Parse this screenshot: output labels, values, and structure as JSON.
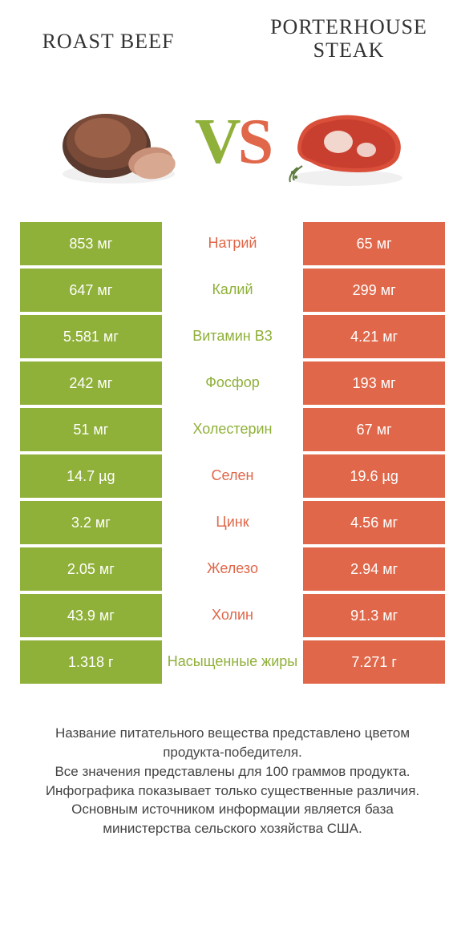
{
  "colors": {
    "green": "#8fb039",
    "red": "#e06749",
    "text": "#333333",
    "bg": "#ffffff"
  },
  "header": {
    "left_title": "Roast Beef",
    "right_title_line1": "Porterhouse",
    "right_title_line2": "Steak",
    "vs_v": "V",
    "vs_s": "S"
  },
  "table": {
    "rows": [
      {
        "left": "853 мг",
        "label": "Натрий",
        "right": "65 мг",
        "winner": "red"
      },
      {
        "left": "647 мг",
        "label": "Калий",
        "right": "299 мг",
        "winner": "green"
      },
      {
        "left": "5.581 мг",
        "label": "Витамин B3",
        "right": "4.21 мг",
        "winner": "green"
      },
      {
        "left": "242 мг",
        "label": "Фосфор",
        "right": "193 мг",
        "winner": "green"
      },
      {
        "left": "51 мг",
        "label": "Холестерин",
        "right": "67 мг",
        "winner": "green"
      },
      {
        "left": "14.7 µg",
        "label": "Селен",
        "right": "19.6 µg",
        "winner": "red"
      },
      {
        "left": "3.2 мг",
        "label": "Цинк",
        "right": "4.56 мг",
        "winner": "red"
      },
      {
        "left": "2.05 мг",
        "label": "Железо",
        "right": "2.94 мг",
        "winner": "red"
      },
      {
        "left": "43.9 мг",
        "label": "Холин",
        "right": "91.3 мг",
        "winner": "red"
      },
      {
        "left": "1.318 г",
        "label": "Насыщенные жиры",
        "right": "7.271 г",
        "winner": "green"
      }
    ]
  },
  "footer": {
    "line1": "Название питательного вещества представлено цветом продукта-победителя.",
    "line2": "Все значения представлены для 100 граммов продукта.",
    "line3": "Инфографика показывает только существенные различия.",
    "line4": "Основным источником информации является база министерства сельского хозяйства США."
  }
}
